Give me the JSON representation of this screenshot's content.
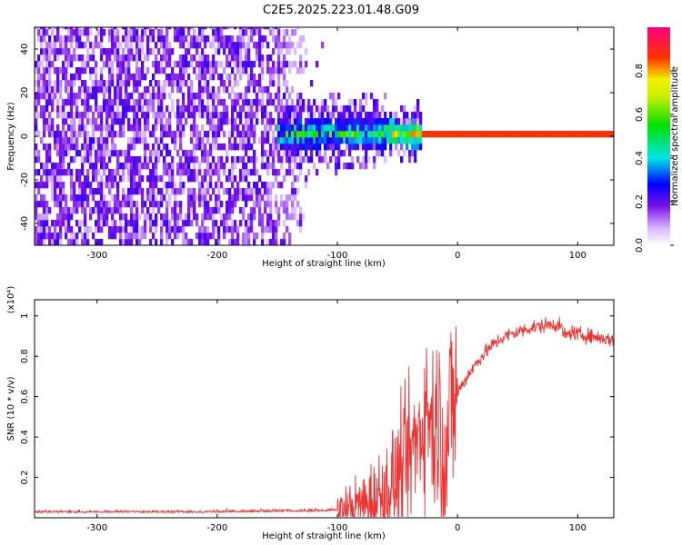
{
  "title": "C2E5.2025.223.01.48.G09",
  "chart_data": [
    {
      "type": "heatmap",
      "xlabel": "Height of straight line (km)",
      "ylabel": "Frequency (Hz)",
      "xlim": [
        -352,
        130
      ],
      "ylim": [
        -50,
        50
      ],
      "xticks": [
        -300,
        -200,
        -100,
        0,
        100
      ],
      "yticks": [
        -40,
        -20,
        0,
        20,
        40
      ],
      "colorbar": {
        "label": "Normalized spectral amplitude",
        "range": [
          0.0,
          1.0
        ],
        "ticks": [
          0.0,
          0.2,
          0.4,
          0.6,
          0.8
        ],
        "colors": [
          "#ffffff",
          "#7a10e8",
          "#0000ff",
          "#00e5e5",
          "#00e000",
          "#f2f200",
          "#ff3300",
          "#ff0080"
        ]
      },
      "description_points": {
        "noise_region_x": [
          -352,
          -105
        ],
        "signal_center_freq": 0,
        "signal_band_start_x": -150,
        "strong_line_start_x": -30,
        "strong_line_end_x": 130
      }
    },
    {
      "type": "line",
      "xlabel": "Height of straight line (km)",
      "ylabel": "SNR (10 * v/v)",
      "yscale_label": "(x10⁴)",
      "xlim": [
        -352,
        130
      ],
      "ylim": [
        0,
        1.08
      ],
      "xticks": [
        -300,
        -200,
        -100,
        0,
        100
      ],
      "yticks": [
        0.2,
        0.4,
        0.6,
        0.8,
        1
      ],
      "series": [
        {
          "color": "#ee3333",
          "x": [
            -352,
            -300,
            -250,
            -200,
            -150,
            -120,
            -100,
            -80,
            -60,
            -50,
            -40,
            -30,
            -25,
            -20,
            -15,
            -10,
            -5,
            0,
            10,
            20,
            30,
            40,
            50,
            60,
            70,
            80,
            85,
            90,
            95,
            100,
            110,
            120,
            130
          ],
          "y": [
            0.025,
            0.025,
            0.025,
            0.025,
            0.03,
            0.03,
            0.035,
            0.06,
            0.12,
            0.2,
            0.3,
            0.45,
            0.55,
            0.45,
            0.5,
            0.3,
            0.55,
            0.62,
            0.72,
            0.8,
            0.86,
            0.9,
            0.92,
            0.94,
            0.95,
            0.96,
            0.95,
            0.9,
            0.92,
            0.91,
            0.9,
            0.89,
            0.88
          ]
        }
      ]
    }
  ]
}
